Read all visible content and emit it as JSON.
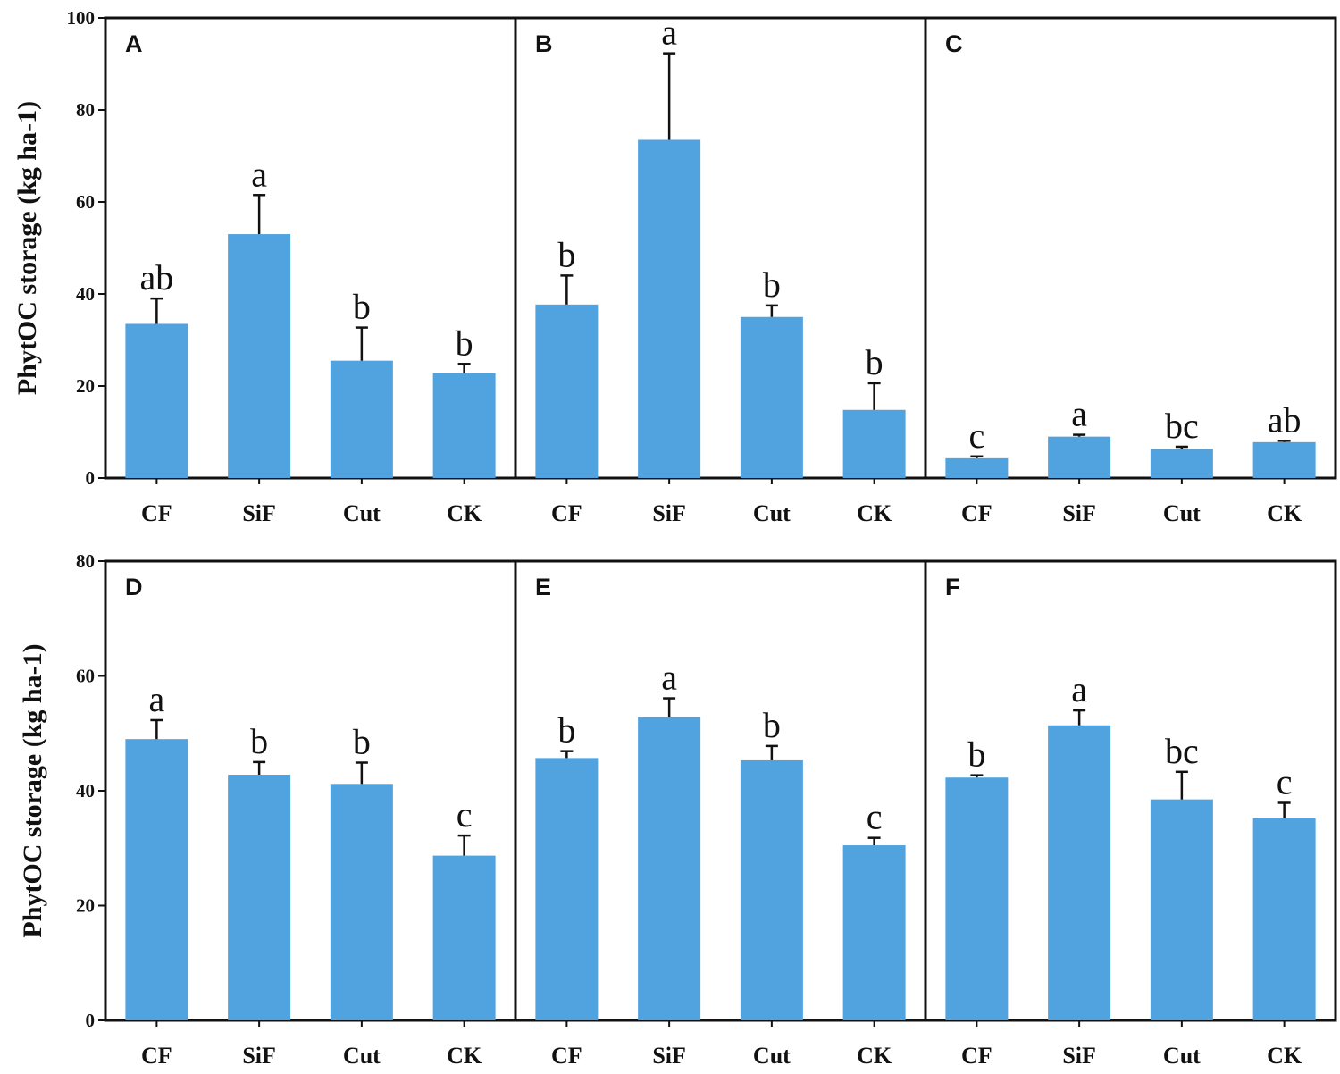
{
  "chart_data": [
    {
      "type": "bar",
      "panel": "A",
      "categories": [
        "CF",
        "SiF",
        "Cut",
        "CK"
      ],
      "values": [
        33.5,
        53.0,
        25.5,
        22.8
      ],
      "errors": [
        5.5,
        8.5,
        7.2,
        2.0
      ],
      "letters": [
        "ab",
        "a",
        "b",
        "b"
      ],
      "ylabel": "PhytOC storage (kg ha-1)",
      "ylim": [
        0,
        100
      ],
      "yticks": [
        "0",
        "20",
        "40",
        "60",
        "80",
        "100"
      ]
    },
    {
      "type": "bar",
      "panel": "B",
      "categories": [
        "CF",
        "SiF",
        "Cut",
        "CK"
      ],
      "values": [
        37.7,
        73.5,
        35.0,
        14.8
      ],
      "errors": [
        6.3,
        18.8,
        2.5,
        5.8
      ],
      "letters": [
        "b",
        "a",
        "b",
        "b"
      ],
      "ylim": [
        0,
        100
      ]
    },
    {
      "type": "bar",
      "panel": "C",
      "categories": [
        "CF",
        "SiF",
        "Cut",
        "CK"
      ],
      "values": [
        4.3,
        9.0,
        6.3,
        7.8
      ],
      "errors": [
        0.4,
        0.4,
        0.5,
        0.3
      ],
      "letters": [
        "c",
        "a",
        "bc",
        "ab"
      ],
      "ylim": [
        0,
        100
      ]
    },
    {
      "type": "bar",
      "panel": "D",
      "categories": [
        "CF",
        "SiF",
        "Cut",
        "CK"
      ],
      "values": [
        49.0,
        42.8,
        41.2,
        28.7
      ],
      "errors": [
        3.3,
        2.2,
        3.7,
        3.5
      ],
      "letters": [
        "a",
        "b",
        "b",
        "c"
      ],
      "ylabel": "PhytOC storage (kg ha-1)",
      "ylim": [
        0,
        80
      ],
      "yticks": [
        "0",
        "20",
        "40",
        "60",
        "80"
      ]
    },
    {
      "type": "bar",
      "panel": "E",
      "categories": [
        "CF",
        "SiF",
        "Cut",
        "CK"
      ],
      "values": [
        45.7,
        52.8,
        45.3,
        30.5
      ],
      "errors": [
        1.2,
        3.3,
        2.5,
        1.3
      ],
      "letters": [
        "b",
        "a",
        "b",
        "c"
      ],
      "ylim": [
        0,
        80
      ]
    },
    {
      "type": "bar",
      "panel": "F",
      "categories": [
        "CF",
        "SiF",
        "Cut",
        "CK"
      ],
      "values": [
        42.3,
        51.4,
        38.5,
        35.2
      ],
      "errors": [
        0.4,
        2.6,
        4.8,
        2.7
      ],
      "letters": [
        "b",
        "a",
        "bc",
        "c"
      ],
      "ylim": [
        0,
        80
      ]
    }
  ],
  "colors": {
    "bar": "#51a3e0",
    "axis": "#111111"
  }
}
